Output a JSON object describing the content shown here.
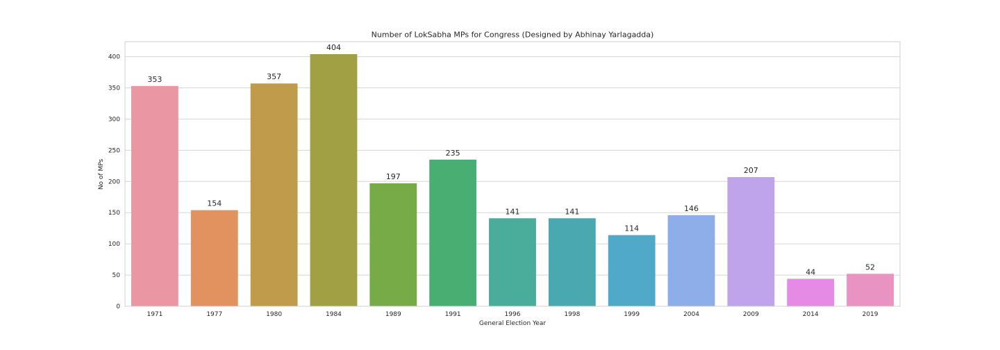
{
  "chart_data": {
    "type": "bar",
    "title": "Number of LokSabha MPs for Congress   (Designed by Abhinay Yarlagadda)",
    "xlabel": "General Election Year",
    "ylabel": "No of MPs",
    "categories": [
      "1971",
      "1977",
      "1980",
      "1984",
      "1989",
      "1991",
      "1996",
      "1998",
      "1999",
      "2004",
      "2009",
      "2014",
      "2019"
    ],
    "values": [
      353,
      154,
      357,
      404,
      197,
      235,
      141,
      141,
      114,
      146,
      207,
      44,
      52
    ],
    "ylim": [
      0,
      424
    ],
    "yticks": [
      0,
      50,
      100,
      150,
      200,
      250,
      300,
      350,
      400
    ],
    "grid": true,
    "colors": [
      "#ea96a3",
      "#e1925f",
      "#bf9b4b",
      "#a1a044",
      "#77ab48",
      "#49ae72",
      "#4aad9c",
      "#4aa9b0",
      "#50a9c9",
      "#8eaee9",
      "#bfa4eb",
      "#e68be5",
      "#e993c2"
    ]
  }
}
